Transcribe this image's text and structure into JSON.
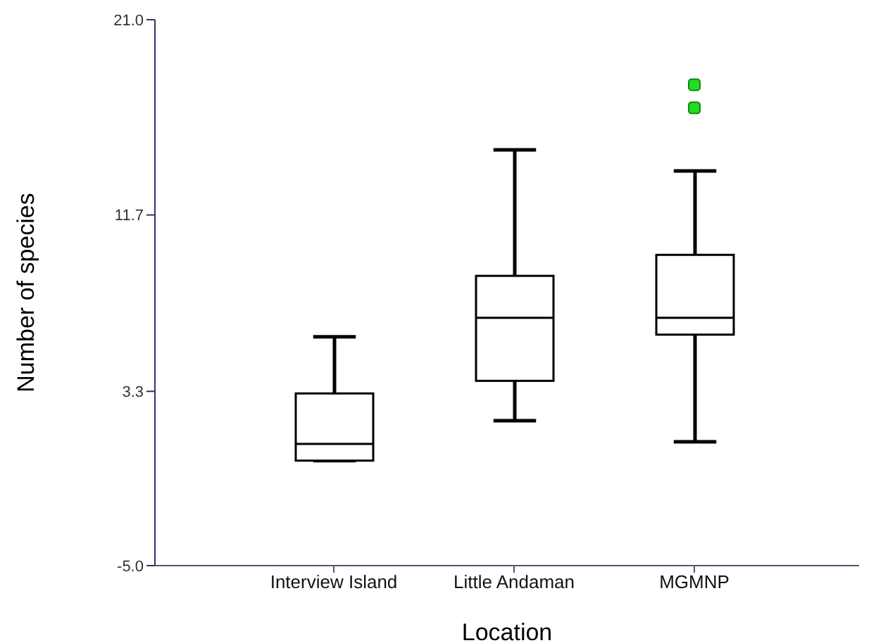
{
  "chart_data": {
    "type": "box",
    "xlabel": "Location",
    "ylabel": "Number of species",
    "categories": [
      "Interview Island",
      "Little Andaman",
      "MGMNP"
    ],
    "boxes": [
      {
        "low": 0,
        "q1": 0,
        "median": 0.8,
        "q3": 3.2,
        "high": 5.9
      },
      {
        "low": 1.9,
        "q1": 3.8,
        "median": 6.8,
        "q3": 8.8,
        "high": 14.8
      },
      {
        "low": 0.9,
        "q1": 6.0,
        "median": 6.8,
        "q3": 9.8,
        "high": 13.8,
        "outliers": [
          16.8,
          17.9
        ]
      }
    ],
    "ylim": [
      -5,
      21
    ],
    "yticks": [
      {
        "value": -5,
        "label": "-5.0"
      },
      3.3,
      11.7,
      {
        "value": 21,
        "label": "21.0"
      }
    ]
  }
}
